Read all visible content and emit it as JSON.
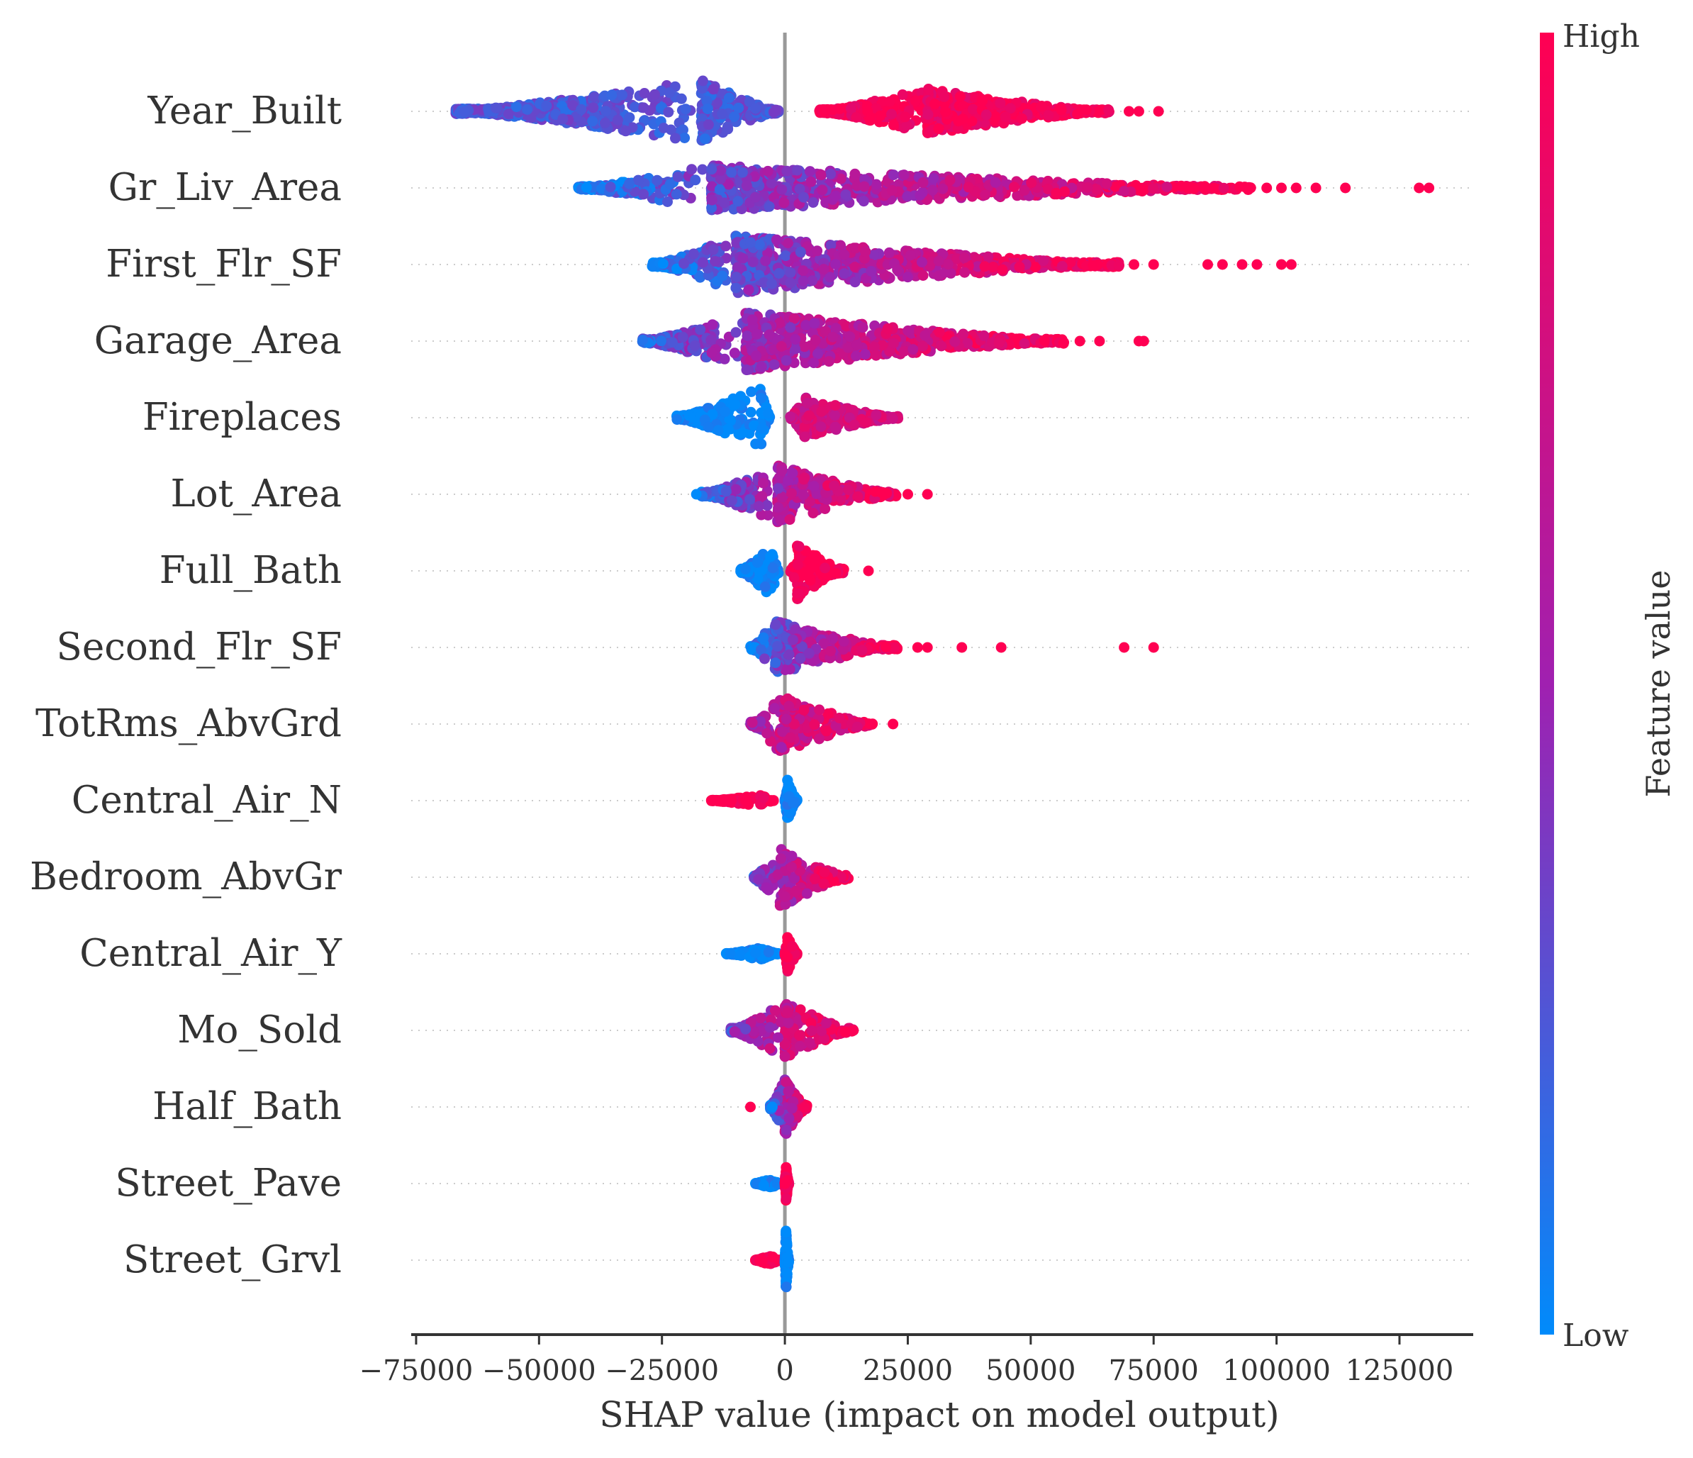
{
  "chart_data": {
    "type": "scatter",
    "subtype": "beeswarm",
    "xlabel": "SHAP value (impact on model output)",
    "xticks": [
      -75000,
      -50000,
      -25000,
      0,
      25000,
      50000,
      75000,
      100000,
      125000
    ],
    "xtick_labels": [
      "−75000",
      "−50000",
      "−25000",
      "0",
      "25000",
      "50000",
      "75000",
      "100000",
      "125000"
    ],
    "xlim": [
      -76000,
      140000
    ],
    "colorbar": {
      "label": "Feature value",
      "high_label": "High",
      "low_label": "Low",
      "low_color": "#008bfb",
      "mid_color": "#a020b0",
      "high_color": "#ff0052"
    },
    "zero_line_color": "#999999",
    "features": [
      {
        "name": "Year_Built",
        "negative": {
          "min": -67000,
          "peak": -17000,
          "end": -1000,
          "height": 0.85,
          "color": 0.25
        },
        "positive": {
          "start": 7000,
          "peak": 29000,
          "max": 66000,
          "height": 0.62,
          "color": 0.95
        },
        "outliers": [
          {
            "x": 70000,
            "c": 1
          },
          {
            "x": 72000,
            "c": 1
          },
          {
            "x": 76000,
            "c": 1
          }
        ]
      },
      {
        "name": "Gr_Liv_Area",
        "range": [
          -42000,
          95000
        ],
        "peak": -15000,
        "height": 0.62,
        "color_low": 0.0,
        "color_high": 1.0,
        "outliers": [
          {
            "x": 98000,
            "c": 1
          },
          {
            "x": 101000,
            "c": 1
          },
          {
            "x": 104000,
            "c": 1
          },
          {
            "x": 108000,
            "c": 1
          },
          {
            "x": 114000,
            "c": 1
          },
          {
            "x": 129000,
            "c": 1
          },
          {
            "x": 131000,
            "c": 1
          }
        ]
      },
      {
        "name": "First_Flr_SF",
        "range": [
          -27000,
          68000
        ],
        "peak": -10000,
        "height": 0.78,
        "color_low": 0.0,
        "color_high": 1.0,
        "outliers": [
          {
            "x": 71000,
            "c": 1
          },
          {
            "x": 75000,
            "c": 1
          },
          {
            "x": 86000,
            "c": 1
          },
          {
            "x": 89000,
            "c": 1
          },
          {
            "x": 93000,
            "c": 1
          },
          {
            "x": 96000,
            "c": 1
          },
          {
            "x": 101000,
            "c": 1
          },
          {
            "x": 103000,
            "c": 1
          }
        ]
      },
      {
        "name": "Garage_Area",
        "range": [
          -29000,
          57000
        ],
        "peak": -8000,
        "height": 0.8,
        "color_low": 0.15,
        "color_high": 1.0,
        "outliers": [
          {
            "x": 60000,
            "c": 1
          },
          {
            "x": 64000,
            "c": 1
          },
          {
            "x": 72000,
            "c": 1
          },
          {
            "x": 73000,
            "c": 1
          }
        ]
      },
      {
        "name": "Fireplaces",
        "negative": {
          "min": -22000,
          "peak": -5000,
          "end": -3000,
          "height": 0.86,
          "color": 0.0
        },
        "positive": {
          "start": 1000,
          "peak": 4000,
          "max": 23000,
          "height": 0.55,
          "color": 0.75
        }
      },
      {
        "name": "Lot_Area",
        "range": [
          -17000,
          23000
        ],
        "peak": -1500,
        "height": 0.78,
        "color_low": 0.1,
        "color_high": 1.0,
        "outliers": [
          {
            "x": -18000,
            "c": 0
          },
          {
            "x": 25000,
            "c": 1
          },
          {
            "x": 29000,
            "c": 1
          }
        ]
      },
      {
        "name": "Full_Bath",
        "negative": {
          "min": -9000,
          "peak": -3000,
          "end": -1000,
          "height": 0.72,
          "color": 0.0
        },
        "positive": {
          "start": 1000,
          "peak": 2500,
          "max": 12000,
          "height": 0.78,
          "color": 1.0
        },
        "outliers": [
          {
            "x": 17000,
            "c": 1
          }
        ]
      },
      {
        "name": "Second_Flr_SF",
        "range": [
          -7000,
          23000
        ],
        "peak": -2000,
        "height": 0.72,
        "color_low": 0.0,
        "color_high": 1.0,
        "outliers": [
          {
            "x": 27000,
            "c": 1
          },
          {
            "x": 29000,
            "c": 1
          },
          {
            "x": 36000,
            "c": 1
          },
          {
            "x": 44000,
            "c": 1
          },
          {
            "x": 69000,
            "c": 1
          },
          {
            "x": 75000,
            "c": 1
          }
        ]
      },
      {
        "name": "TotRms_AbvGrd",
        "range": [
          -7000,
          18000
        ],
        "peak": -1000,
        "height": 0.78,
        "color_low": 0.5,
        "color_high": 0.95,
        "outliers": [
          {
            "x": 22000,
            "c": 1
          }
        ]
      },
      {
        "name": "Central_Air_N",
        "negative": {
          "min": -15000,
          "peak": -5000,
          "end": -2000,
          "height": 0.16,
          "color": 1.0
        },
        "positive": {
          "start": 0,
          "peak": 500,
          "max": 2500,
          "height": 0.58,
          "color": 0.0
        }
      },
      {
        "name": "Bedroom_AbvGr",
        "range": [
          -6500,
          13000
        ],
        "peak": -1000,
        "height": 0.82,
        "color_low": 0.2,
        "color_high": 1.0
      },
      {
        "name": "Central_Air_Y",
        "negative": {
          "min": -12000,
          "peak": -5000,
          "end": -1000,
          "height": 0.16,
          "color": 0.0
        },
        "positive": {
          "start": 0,
          "peak": 500,
          "max": 2500,
          "height": 0.5,
          "color": 1.0
        }
      },
      {
        "name": "Mo_Sold",
        "range": [
          -11000,
          14000
        ],
        "peak": 0,
        "height": 0.78,
        "color_low": 0.3,
        "color_high": 1.0
      },
      {
        "name": "Half_Bath",
        "range": [
          -3000,
          4500
        ],
        "peak": 0,
        "height": 0.78,
        "color_low": 0.0,
        "color_high": 1.0,
        "outliers": [
          {
            "x": -7000,
            "c": 1
          }
        ]
      },
      {
        "name": "Street_Pave",
        "negative": {
          "min": -6000,
          "peak": -3000,
          "end": -1000,
          "height": 0.14,
          "color": 0.0
        },
        "positive": {
          "start": 0,
          "peak": 200,
          "max": 800,
          "height": 0.52,
          "color": 1.0
        }
      },
      {
        "name": "Street_Grvl",
        "negative": {
          "min": -6000,
          "peak": -3000,
          "end": -1000,
          "height": 0.14,
          "color": 1.0
        },
        "positive": {
          "start": 0,
          "peak": 200,
          "max": 800,
          "height": 0.9,
          "color": 0.0
        }
      }
    ]
  }
}
